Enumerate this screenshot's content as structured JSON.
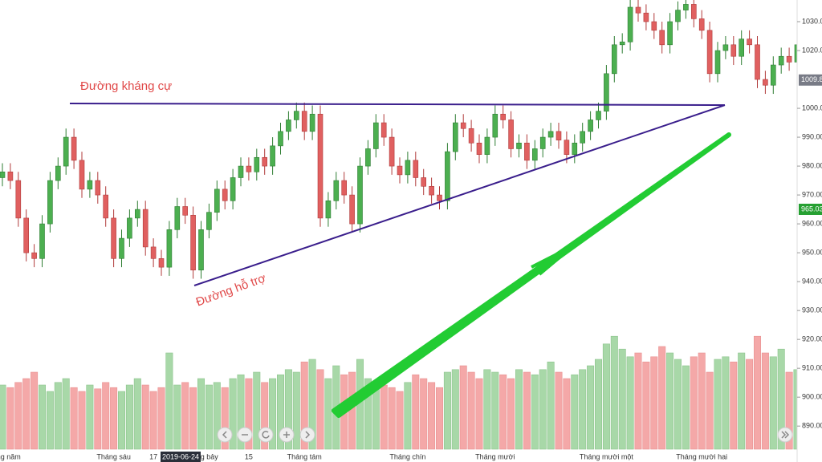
{
  "chart_data": {
    "type": "candlestick",
    "annotations": {
      "resistance": "Đường kháng cự",
      "support": "Đường hỗ trợ"
    },
    "crosshair_date": "2019-06-24",
    "categories": [
      "Tháng năm",
      null,
      null,
      null,
      null,
      null,
      null,
      null,
      null,
      null,
      null,
      null,
      null,
      null,
      "Tháng sáu",
      null,
      null,
      null,
      null,
      "17",
      null,
      null,
      null,
      null,
      null,
      "Tháng bảy",
      null,
      null,
      null,
      null,
      null,
      "15",
      null,
      null,
      null,
      null,
      null,
      null,
      "Tháng tám",
      null,
      null,
      null,
      null,
      null,
      null,
      null,
      null,
      null,
      null,
      null,
      null,
      "Tháng chín",
      null,
      null,
      null,
      null,
      null,
      null,
      null,
      null,
      null,
      null,
      "Tháng mười",
      null,
      null,
      null,
      null,
      null,
      null,
      null,
      null,
      null,
      null,
      null,
      null,
      null,
      "Tháng mười một",
      null,
      null,
      null,
      null,
      null,
      null,
      null,
      null,
      null,
      null,
      null,
      "Tháng mười hai",
      null,
      null,
      null,
      null,
      null,
      null,
      null,
      null,
      null,
      null,
      null,
      null
    ],
    "open": [
      976,
      978,
      975,
      962,
      950,
      948,
      960,
      975,
      980,
      990,
      982,
      972,
      975,
      970,
      962,
      948,
      955,
      962,
      965,
      952,
      948,
      945,
      958,
      966,
      963,
      944,
      958,
      964,
      972,
      968,
      976,
      980,
      978,
      983,
      980,
      987,
      992,
      996,
      999,
      992,
      998,
      962,
      968,
      975,
      970,
      960,
      980,
      986,
      995,
      990,
      980,
      977,
      982,
      976,
      973,
      970,
      968,
      985,
      995,
      993,
      988,
      984,
      990,
      998,
      996,
      986,
      988,
      982,
      986,
      990,
      992,
      989,
      984,
      988,
      992,
      996,
      999,
      1012,
      1022,
      1023,
      1035,
      1033,
      1030,
      1027,
      1022,
      1030,
      1034,
      1036,
      1031,
      1027,
      1012,
      1020,
      1022,
      1018,
      1024,
      1022,
      1010,
      1008,
      1015,
      1018,
      1016
    ],
    "high": [
      981,
      981,
      978,
      965,
      953,
      963,
      978,
      983,
      993,
      993,
      985,
      978,
      978,
      973,
      965,
      958,
      965,
      968,
      968,
      955,
      951,
      961,
      969,
      969,
      966,
      961,
      967,
      975,
      975,
      979,
      983,
      983,
      986,
      986,
      990,
      995,
      999,
      1002,
      1002,
      1001,
      1001,
      971,
      978,
      978,
      973,
      983,
      989,
      998,
      998,
      993,
      983,
      985,
      985,
      979,
      976,
      973,
      988,
      998,
      998,
      996,
      991,
      993,
      1001,
      1001,
      999,
      991,
      991,
      989,
      993,
      995,
      995,
      992,
      991,
      995,
      999,
      1002,
      1015,
      1025,
      1026,
      1038,
      1038,
      1036,
      1033,
      1030,
      1033,
      1037,
      1039,
      1039,
      1034,
      1030,
      1023,
      1025,
      1025,
      1027,
      1027,
      1025,
      1013,
      1018,
      1021,
      1021,
      1025
    ],
    "low": [
      973,
      972,
      959,
      947,
      945,
      945,
      957,
      972,
      977,
      979,
      969,
      969,
      967,
      959,
      945,
      945,
      952,
      959,
      949,
      945,
      942,
      942,
      955,
      960,
      941,
      941,
      955,
      961,
      965,
      965,
      973,
      975,
      975,
      977,
      977,
      984,
      989,
      993,
      989,
      989,
      959,
      959,
      965,
      967,
      957,
      957,
      977,
      983,
      987,
      977,
      974,
      974,
      973,
      970,
      967,
      965,
      965,
      982,
      990,
      985,
      981,
      981,
      987,
      993,
      983,
      983,
      979,
      979,
      983,
      987,
      986,
      981,
      981,
      985,
      989,
      993,
      996,
      1009,
      1019,
      1020,
      1030,
      1027,
      1024,
      1019,
      1019,
      1027,
      1031,
      1028,
      1024,
      1009,
      1009,
      1017,
      1015,
      1015,
      1019,
      1007,
      1005,
      1005,
      1012,
      1013,
      1013
    ],
    "close": [
      978,
      975,
      962,
      950,
      948,
      960,
      975,
      980,
      990,
      982,
      972,
      975,
      970,
      962,
      948,
      955,
      962,
      965,
      952,
      948,
      945,
      958,
      966,
      963,
      944,
      958,
      964,
      972,
      968,
      976,
      980,
      978,
      983,
      980,
      987,
      992,
      996,
      999,
      992,
      998,
      962,
      968,
      975,
      970,
      960,
      980,
      986,
      995,
      990,
      980,
      977,
      982,
      976,
      973,
      970,
      968,
      985,
      995,
      993,
      988,
      984,
      990,
      998,
      996,
      986,
      988,
      982,
      986,
      990,
      992,
      989,
      984,
      988,
      992,
      996,
      999,
      1012,
      1022,
      1023,
      1035,
      1033,
      1030,
      1027,
      1022,
      1030,
      1034,
      1036,
      1031,
      1027,
      1012,
      1020,
      1022,
      1018,
      1024,
      1022,
      1010,
      1008,
      1015,
      1018,
      1016,
      1022
    ],
    "volume": [
      50,
      48,
      52,
      55,
      60,
      50,
      45,
      52,
      55,
      48,
      45,
      50,
      47,
      52,
      48,
      45,
      50,
      55,
      50,
      45,
      48,
      75,
      50,
      52,
      48,
      55,
      50,
      52,
      48,
      55,
      58,
      55,
      60,
      52,
      55,
      58,
      62,
      60,
      68,
      70,
      62,
      55,
      65,
      58,
      60,
      70,
      55,
      52,
      50,
      48,
      45,
      52,
      58,
      55,
      52,
      48,
      60,
      62,
      65,
      60,
      55,
      62,
      60,
      58,
      55,
      62,
      60,
      58,
      62,
      68,
      60,
      55,
      58,
      62,
      65,
      70,
      82,
      88,
      78,
      72,
      75,
      68,
      72,
      80,
      75,
      70,
      65,
      72,
      75,
      60,
      70,
      72,
      68,
      75,
      70,
      88,
      75,
      72,
      78,
      60,
      62
    ],
    "volume_lim": [
      0,
      100
    ],
    "ylim": [
      882,
      1037.5
    ],
    "yticks": [
      {
        "value": 1030,
        "label": "1030.0"
      },
      {
        "value": 1020,
        "label": "1020.0"
      },
      {
        "value": 1000,
        "label": "1000.0"
      },
      {
        "value": 990,
        "label": "990.00"
      },
      {
        "value": 980,
        "label": "980.00"
      },
      {
        "value": 970,
        "label": "970.00"
      },
      {
        "value": 960,
        "label": "960.00"
      },
      {
        "value": 950,
        "label": "950.00"
      },
      {
        "value": 940,
        "label": "940.00"
      },
      {
        "value": 930,
        "label": "930.00"
      },
      {
        "value": 920,
        "label": "920.00"
      },
      {
        "value": 910,
        "label": "910.00"
      },
      {
        "value": 900,
        "label": "900.00"
      },
      {
        "value": 890,
        "label": "890.00"
      }
    ],
    "price_tags": [
      {
        "value": 1009.8,
        "label": "1009.8",
        "color": "#787b86"
      },
      {
        "value": 965.03,
        "label": "965.03",
        "color": "#26a032"
      }
    ],
    "up_color": "#4caf50",
    "down_color": "#e06060",
    "volume_up_color": "#a8d8a8",
    "volume_down_color": "#f4a8a8",
    "grid": false
  }
}
